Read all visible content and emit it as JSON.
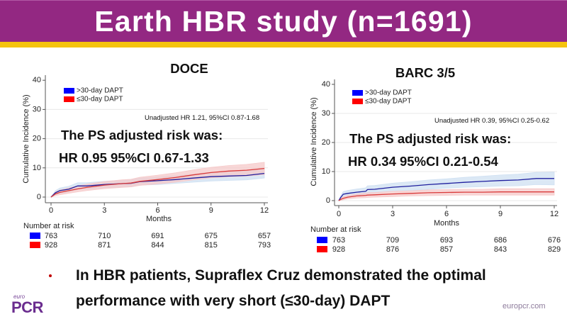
{
  "header": {
    "title": "Earth HBR study (n=1691)"
  },
  "colors": {
    "header_bg": "#932882",
    "accent_bar": "#f5c30f",
    "bullet": "#c00000",
    "logo": "#6b2d8f",
    "url": "#8d7b9b"
  },
  "chart_data": [
    {
      "type": "line",
      "title": "DOCE",
      "xlabel": "Months",
      "ylabel": "Cumulative Incidence (%)",
      "xlim": [
        0,
        12
      ],
      "ylim": [
        0,
        40
      ],
      "xticks": [
        0,
        3,
        6,
        9,
        12
      ],
      "yticks": [
        0,
        10,
        20,
        30,
        40
      ],
      "grid": true,
      "legend": {
        "position": "top-left",
        "entries": [
          ">30-day DAPT",
          "≤30-day DAPT"
        ]
      },
      "series": [
        {
          "name": ">30-day DAPT",
          "line_color": "#1f1f9e",
          "legend_color": "#0000ff",
          "band_color": "#cfe0f2",
          "x": [
            0,
            0.25,
            0.5,
            1,
            1.5,
            2,
            3,
            4,
            4.5,
            5,
            6,
            7,
            8,
            9,
            10,
            11,
            12
          ],
          "y": [
            0,
            1.5,
            2.2,
            2.7,
            3.8,
            3.8,
            4.3,
            4.6,
            4.7,
            5.3,
            5.6,
            6.0,
            6.5,
            7.0,
            7.2,
            7.4,
            8.1
          ],
          "lower": [
            0,
            0.8,
            1.3,
            1.7,
            2.7,
            2.7,
            3.2,
            3.4,
            3.5,
            4.1,
            4.3,
            4.7,
            5.1,
            5.5,
            5.7,
            5.9,
            6.5
          ],
          "upper": [
            0,
            2.2,
            3.1,
            3.7,
            4.9,
            4.9,
            5.4,
            5.8,
            5.9,
            6.5,
            6.9,
            7.3,
            7.9,
            8.5,
            8.7,
            8.9,
            9.7
          ]
        },
        {
          "name": "≤30-day DAPT",
          "line_color": "#d93a3a",
          "legend_color": "#ff0000",
          "band_color": "#f6caca",
          "x": [
            0,
            0.25,
            0.5,
            1,
            1.5,
            2,
            3,
            4,
            4.5,
            5,
            6,
            7,
            8,
            9,
            10,
            11,
            12
          ],
          "y": [
            0,
            1.1,
            1.6,
            2.2,
            2.8,
            3.3,
            4.1,
            4.6,
            4.8,
            5.4,
            6.0,
            6.7,
            7.6,
            8.4,
            8.9,
            9.2,
            9.8
          ],
          "lower": [
            0,
            0.5,
            0.8,
            1.3,
            1.8,
            2.2,
            2.9,
            3.3,
            3.5,
            4.0,
            4.5,
            5.1,
            5.9,
            6.6,
            7.0,
            7.2,
            7.7
          ],
          "upper": [
            0,
            1.7,
            2.4,
            3.1,
            3.8,
            4.4,
            5.3,
            5.9,
            6.1,
            6.8,
            7.5,
            8.3,
            9.3,
            10.2,
            10.8,
            11.2,
            11.9
          ]
        }
      ],
      "annotations": {
        "unadjusted": "Unadjusted HR 1.21, 95%CI 0.87-1.68",
        "ps_label": "The PS adjusted risk was:",
        "ps_value": "HR 0.95 95%CI 0.67-1.33"
      },
      "risk_table": {
        "title": "Number at risk",
        "times": [
          0,
          3,
          6,
          9,
          12
        ],
        "rows": [
          {
            "color": "#0000ff",
            "values": [
              763,
              710,
              691,
              675,
              657
            ]
          },
          {
            "color": "#ff0000",
            "values": [
              928,
              871,
              844,
              815,
              793
            ]
          }
        ]
      }
    },
    {
      "type": "line",
      "title": "BARC 3/5",
      "xlabel": "Months",
      "ylabel": "Cumulative Incidence (%)",
      "xlim": [
        0,
        12
      ],
      "ylim": [
        0,
        40
      ],
      "xticks": [
        0,
        3,
        6,
        9,
        12
      ],
      "yticks": [
        0,
        10,
        20,
        30,
        40
      ],
      "grid": true,
      "legend": {
        "position": "top-left",
        "entries": [
          ">30-day DAPT",
          "≤30-day DAPT"
        ]
      },
      "series": [
        {
          "name": ">30-day DAPT",
          "line_color": "#1f1f9e",
          "legend_color": "#0000ff",
          "band_color": "#cfe0f2",
          "x": [
            0,
            0.1,
            0.25,
            0.5,
            1,
            1.5,
            1.6,
            2,
            3,
            4,
            5,
            6,
            7,
            8,
            9,
            10,
            11,
            12
          ],
          "y": [
            0,
            1.0,
            2.2,
            2.5,
            2.9,
            3.2,
            3.8,
            3.9,
            4.6,
            5.0,
            5.5,
            5.9,
            6.3,
            6.6,
            6.9,
            7.1,
            7.6,
            7.6
          ],
          "lower": [
            0,
            0.4,
            1.3,
            1.5,
            1.8,
            2.0,
            2.5,
            2.6,
            3.2,
            3.5,
            3.9,
            4.3,
            4.6,
            4.8,
            5.0,
            5.1,
            5.5,
            5.4
          ],
          "upper": [
            0,
            1.6,
            3.1,
            3.5,
            4.0,
            4.4,
            5.1,
            5.2,
            6.0,
            6.5,
            7.1,
            7.5,
            8.0,
            8.4,
            8.8,
            9.1,
            9.7,
            9.8
          ]
        },
        {
          "name": "≤30-day DAPT",
          "line_color": "#d93a3a",
          "legend_color": "#ff0000",
          "band_color": "#f6caca",
          "x": [
            0,
            0.1,
            0.25,
            0.5,
            1,
            1.5,
            1.6,
            2,
            3,
            4,
            5,
            6,
            7,
            8,
            9,
            10,
            11,
            12
          ],
          "y": [
            0,
            0.4,
            0.8,
            1.2,
            1.6,
            1.8,
            1.9,
            2.0,
            2.3,
            2.5,
            2.7,
            2.8,
            2.9,
            2.9,
            3.0,
            3.0,
            3.0,
            3.0
          ],
          "lower": [
            0,
            0.1,
            0.3,
            0.6,
            0.9,
            1.0,
            1.1,
            1.2,
            1.4,
            1.6,
            1.7,
            1.8,
            1.9,
            1.9,
            1.9,
            1.9,
            1.9,
            1.9
          ],
          "upper": [
            0,
            0.7,
            1.3,
            1.8,
            2.3,
            2.6,
            2.7,
            2.8,
            3.2,
            3.4,
            3.7,
            3.8,
            3.9,
            3.9,
            4.1,
            4.1,
            4.1,
            4.1
          ]
        }
      ],
      "annotations": {
        "unadjusted": "Unadjusted HR 0.39, 95%CI 0.25-0.62",
        "ps_label": "The PS adjusted risk was:",
        "ps_value": "HR 0.34 95%CI 0.21-0.54"
      },
      "risk_table": {
        "title": "Number at risk",
        "times": [
          0,
          3,
          6,
          9,
          12
        ],
        "rows": [
          {
            "color": "#0000ff",
            "values": [
              763,
              709,
              693,
              686,
              676
            ]
          },
          {
            "color": "#ff0000",
            "values": [
              928,
              876,
              857,
              843,
              829
            ]
          }
        ]
      }
    }
  ],
  "bullet": {
    "icon": "bullet-dot",
    "line1": "In HBR patients, Supraflex Cruz demonstrated the optimal",
    "line2": "performance with very short (≤30-day) DAPT"
  },
  "footer": {
    "logo_small": "euro",
    "logo_main": "PCR",
    "url": "europcr.com"
  }
}
